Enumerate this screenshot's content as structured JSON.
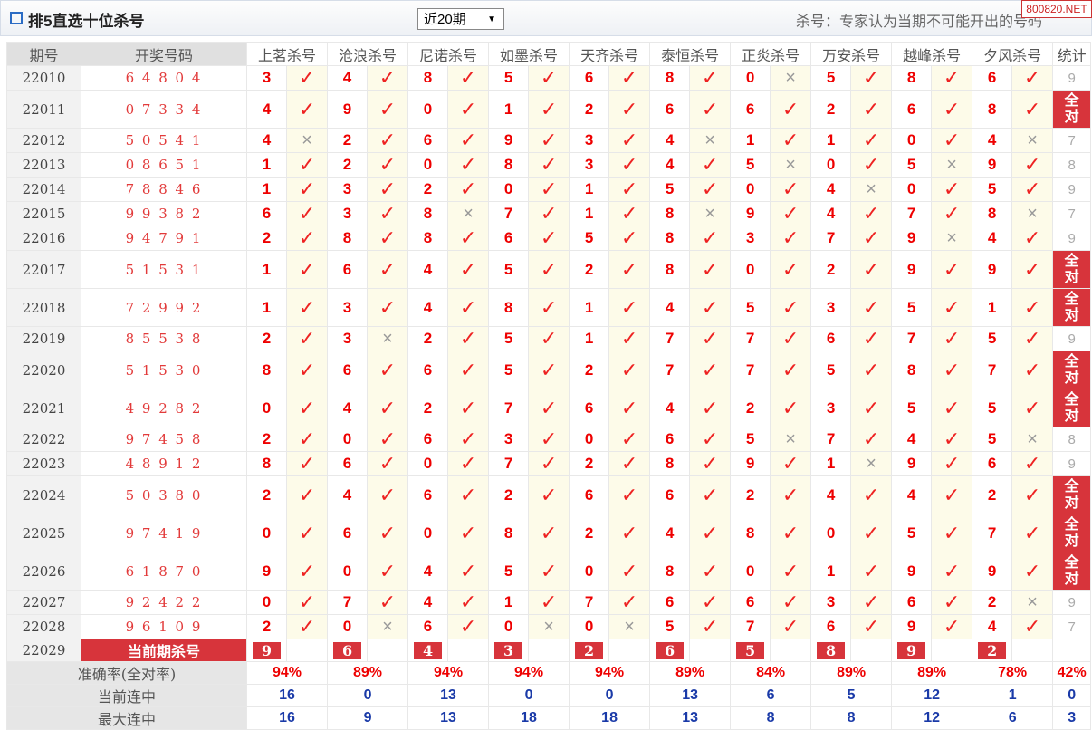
{
  "header": {
    "title": "排5直选十位杀号",
    "period_select": "近20期",
    "note": "杀号：专家认为当期不可能开出的号码",
    "watermark": "800820.NET"
  },
  "table": {
    "columns": [
      "期号",
      "开奖号码",
      "上茗杀号",
      "沧浪杀号",
      "尼诺杀号",
      "如墨杀号",
      "天齐杀号",
      "泰恒杀号",
      "正炎杀号",
      "万安杀号",
      "越峰杀号",
      "夕风杀号",
      "统计"
    ],
    "rows": [
      {
        "period": "22010",
        "draw": "6 4 8 0 4",
        "picks": [
          [
            3,
            "✓"
          ],
          [
            4,
            "✓"
          ],
          [
            8,
            "✓"
          ],
          [
            5,
            "✓"
          ],
          [
            6,
            "✓"
          ],
          [
            8,
            "✓"
          ],
          [
            0,
            "×"
          ],
          [
            5,
            "✓"
          ],
          [
            8,
            "✓"
          ],
          [
            6,
            "✓"
          ]
        ],
        "stat": "9"
      },
      {
        "period": "22011",
        "draw": "0 7 3 3 4",
        "picks": [
          [
            4,
            "✓"
          ],
          [
            9,
            "✓"
          ],
          [
            0,
            "✓"
          ],
          [
            1,
            "✓"
          ],
          [
            2,
            "✓"
          ],
          [
            6,
            "✓"
          ],
          [
            6,
            "✓"
          ],
          [
            2,
            "✓"
          ],
          [
            6,
            "✓"
          ],
          [
            8,
            "✓"
          ]
        ],
        "stat": "全对"
      },
      {
        "period": "22012",
        "draw": "5 0 5 4 1",
        "picks": [
          [
            4,
            "×"
          ],
          [
            2,
            "✓"
          ],
          [
            6,
            "✓"
          ],
          [
            9,
            "✓"
          ],
          [
            3,
            "✓"
          ],
          [
            4,
            "×"
          ],
          [
            1,
            "✓"
          ],
          [
            1,
            "✓"
          ],
          [
            0,
            "✓"
          ],
          [
            4,
            "×"
          ]
        ],
        "stat": "7"
      },
      {
        "period": "22013",
        "draw": "0 8 6 5 1",
        "picks": [
          [
            1,
            "✓"
          ],
          [
            2,
            "✓"
          ],
          [
            0,
            "✓"
          ],
          [
            8,
            "✓"
          ],
          [
            3,
            "✓"
          ],
          [
            4,
            "✓"
          ],
          [
            5,
            "×"
          ],
          [
            0,
            "✓"
          ],
          [
            5,
            "×"
          ],
          [
            9,
            "✓"
          ]
        ],
        "stat": "8"
      },
      {
        "period": "22014",
        "draw": "7 8 8 4 6",
        "picks": [
          [
            1,
            "✓"
          ],
          [
            3,
            "✓"
          ],
          [
            2,
            "✓"
          ],
          [
            0,
            "✓"
          ],
          [
            1,
            "✓"
          ],
          [
            5,
            "✓"
          ],
          [
            0,
            "✓"
          ],
          [
            4,
            "×"
          ],
          [
            0,
            "✓"
          ],
          [
            5,
            "✓"
          ]
        ],
        "stat": "9"
      },
      {
        "period": "22015",
        "draw": "9 9 3 8 2",
        "picks": [
          [
            6,
            "✓"
          ],
          [
            3,
            "✓"
          ],
          [
            8,
            "×"
          ],
          [
            7,
            "✓"
          ],
          [
            1,
            "✓"
          ],
          [
            8,
            "×"
          ],
          [
            9,
            "✓"
          ],
          [
            4,
            "✓"
          ],
          [
            7,
            "✓"
          ],
          [
            8,
            "×"
          ]
        ],
        "stat": "7"
      },
      {
        "period": "22016",
        "draw": "9 4 7 9 1",
        "picks": [
          [
            2,
            "✓"
          ],
          [
            8,
            "✓"
          ],
          [
            8,
            "✓"
          ],
          [
            6,
            "✓"
          ],
          [
            5,
            "✓"
          ],
          [
            8,
            "✓"
          ],
          [
            3,
            "✓"
          ],
          [
            7,
            "✓"
          ],
          [
            9,
            "×"
          ],
          [
            4,
            "✓"
          ]
        ],
        "stat": "9"
      },
      {
        "period": "22017",
        "draw": "5 1 5 3 1",
        "picks": [
          [
            1,
            "✓"
          ],
          [
            6,
            "✓"
          ],
          [
            4,
            "✓"
          ],
          [
            5,
            "✓"
          ],
          [
            2,
            "✓"
          ],
          [
            8,
            "✓"
          ],
          [
            0,
            "✓"
          ],
          [
            2,
            "✓"
          ],
          [
            9,
            "✓"
          ],
          [
            9,
            "✓"
          ]
        ],
        "stat": "全对"
      },
      {
        "period": "22018",
        "draw": "7 2 9 9 2",
        "picks": [
          [
            1,
            "✓"
          ],
          [
            3,
            "✓"
          ],
          [
            4,
            "✓"
          ],
          [
            8,
            "✓"
          ],
          [
            1,
            "✓"
          ],
          [
            4,
            "✓"
          ],
          [
            5,
            "✓"
          ],
          [
            3,
            "✓"
          ],
          [
            5,
            "✓"
          ],
          [
            1,
            "✓"
          ]
        ],
        "stat": "全对"
      },
      {
        "period": "22019",
        "draw": "8 5 5 3 8",
        "picks": [
          [
            2,
            "✓"
          ],
          [
            3,
            "×"
          ],
          [
            2,
            "✓"
          ],
          [
            5,
            "✓"
          ],
          [
            1,
            "✓"
          ],
          [
            7,
            "✓"
          ],
          [
            7,
            "✓"
          ],
          [
            6,
            "✓"
          ],
          [
            7,
            "✓"
          ],
          [
            5,
            "✓"
          ]
        ],
        "stat": "9"
      },
      {
        "period": "22020",
        "draw": "5 1 5 3 0",
        "picks": [
          [
            8,
            "✓"
          ],
          [
            6,
            "✓"
          ],
          [
            6,
            "✓"
          ],
          [
            5,
            "✓"
          ],
          [
            2,
            "✓"
          ],
          [
            7,
            "✓"
          ],
          [
            7,
            "✓"
          ],
          [
            5,
            "✓"
          ],
          [
            8,
            "✓"
          ],
          [
            7,
            "✓"
          ]
        ],
        "stat": "全对"
      },
      {
        "period": "22021",
        "draw": "4 9 2 8 2",
        "picks": [
          [
            0,
            "✓"
          ],
          [
            4,
            "✓"
          ],
          [
            2,
            "✓"
          ],
          [
            7,
            "✓"
          ],
          [
            6,
            "✓"
          ],
          [
            4,
            "✓"
          ],
          [
            2,
            "✓"
          ],
          [
            3,
            "✓"
          ],
          [
            5,
            "✓"
          ],
          [
            5,
            "✓"
          ]
        ],
        "stat": "全对"
      },
      {
        "period": "22022",
        "draw": "9 7 4 5 8",
        "picks": [
          [
            2,
            "✓"
          ],
          [
            0,
            "✓"
          ],
          [
            6,
            "✓"
          ],
          [
            3,
            "✓"
          ],
          [
            0,
            "✓"
          ],
          [
            6,
            "✓"
          ],
          [
            5,
            "×"
          ],
          [
            7,
            "✓"
          ],
          [
            4,
            "✓"
          ],
          [
            5,
            "×"
          ]
        ],
        "stat": "8"
      },
      {
        "period": "22023",
        "draw": "4 8 9 1 2",
        "picks": [
          [
            8,
            "✓"
          ],
          [
            6,
            "✓"
          ],
          [
            0,
            "✓"
          ],
          [
            7,
            "✓"
          ],
          [
            2,
            "✓"
          ],
          [
            8,
            "✓"
          ],
          [
            9,
            "✓"
          ],
          [
            1,
            "×"
          ],
          [
            9,
            "✓"
          ],
          [
            6,
            "✓"
          ]
        ],
        "stat": "9"
      },
      {
        "period": "22024",
        "draw": "5 0 3 8 0",
        "picks": [
          [
            2,
            "✓"
          ],
          [
            4,
            "✓"
          ],
          [
            6,
            "✓"
          ],
          [
            2,
            "✓"
          ],
          [
            6,
            "✓"
          ],
          [
            6,
            "✓"
          ],
          [
            2,
            "✓"
          ],
          [
            4,
            "✓"
          ],
          [
            4,
            "✓"
          ],
          [
            2,
            "✓"
          ]
        ],
        "stat": "全对"
      },
      {
        "period": "22025",
        "draw": "9 7 4 1 9",
        "picks": [
          [
            0,
            "✓"
          ],
          [
            6,
            "✓"
          ],
          [
            0,
            "✓"
          ],
          [
            8,
            "✓"
          ],
          [
            2,
            "✓"
          ],
          [
            4,
            "✓"
          ],
          [
            8,
            "✓"
          ],
          [
            0,
            "✓"
          ],
          [
            5,
            "✓"
          ],
          [
            7,
            "✓"
          ]
        ],
        "stat": "全对"
      },
      {
        "period": "22026",
        "draw": "6 1 8 7 0",
        "picks": [
          [
            9,
            "✓"
          ],
          [
            0,
            "✓"
          ],
          [
            4,
            "✓"
          ],
          [
            5,
            "✓"
          ],
          [
            0,
            "✓"
          ],
          [
            8,
            "✓"
          ],
          [
            0,
            "✓"
          ],
          [
            1,
            "✓"
          ],
          [
            9,
            "✓"
          ],
          [
            9,
            "✓"
          ]
        ],
        "stat": "全对"
      },
      {
        "period": "22027",
        "draw": "9 2 4 2 2",
        "picks": [
          [
            0,
            "✓"
          ],
          [
            7,
            "✓"
          ],
          [
            4,
            "✓"
          ],
          [
            1,
            "✓"
          ],
          [
            7,
            "✓"
          ],
          [
            6,
            "✓"
          ],
          [
            6,
            "✓"
          ],
          [
            3,
            "✓"
          ],
          [
            6,
            "✓"
          ],
          [
            2,
            "×"
          ]
        ],
        "stat": "9"
      },
      {
        "period": "22028",
        "draw": "9 6 1 0 9",
        "picks": [
          [
            2,
            "✓"
          ],
          [
            0,
            "×"
          ],
          [
            6,
            "✓"
          ],
          [
            0,
            "×"
          ],
          [
            0,
            "×"
          ],
          [
            5,
            "✓"
          ],
          [
            7,
            "✓"
          ],
          [
            6,
            "✓"
          ],
          [
            9,
            "✓"
          ],
          [
            4,
            "✓"
          ]
        ],
        "stat": "7"
      }
    ],
    "current": {
      "period": "22029",
      "label": "当前期杀号",
      "picks": [
        9,
        6,
        4,
        3,
        2,
        6,
        5,
        8,
        9,
        2
      ]
    },
    "summary": [
      {
        "label": "准确率(全对率)",
        "values": [
          "94%",
          "89%",
          "94%",
          "94%",
          "94%",
          "89%",
          "84%",
          "89%",
          "89%",
          "78%"
        ],
        "stat": "42%"
      },
      {
        "label": "当前连中",
        "values": [
          16,
          0,
          13,
          0,
          0,
          13,
          6,
          5,
          12,
          1
        ],
        "stat": 0
      },
      {
        "label": "最大连中",
        "values": [
          16,
          9,
          13,
          18,
          18,
          13,
          8,
          8,
          12,
          6
        ],
        "stat": 3
      }
    ]
  }
}
